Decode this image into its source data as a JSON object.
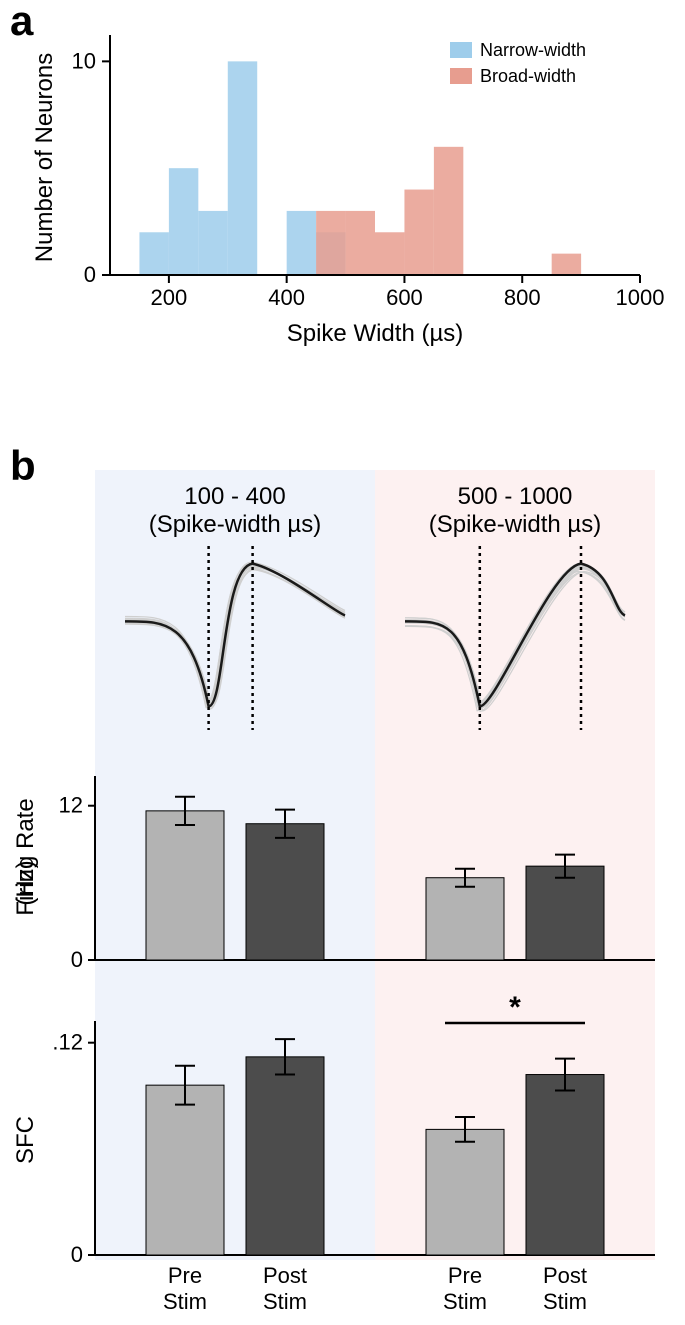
{
  "panelA": {
    "label": "a",
    "type": "histogram",
    "xlabel": "Spike Width (µs)",
    "ylabel": "Number of Neurons",
    "xlim": [
      100,
      1000
    ],
    "ylim": [
      0,
      11
    ],
    "xticks": [
      200,
      400,
      600,
      800,
      1000
    ],
    "yticks": [
      0,
      10
    ],
    "label_fontsize": 24,
    "tick_fontsize": 22,
    "bin_width": 50,
    "axis_color": "#000000",
    "legend": {
      "items": [
        {
          "label": "Narrow-width",
          "color": "#9ecdeb"
        },
        {
          "label": "Broad-width",
          "color": "#e79d8f"
        }
      ],
      "fontsize": 18
    },
    "series": [
      {
        "name": "narrow",
        "color": "#9ecdeb",
        "opacity": 0.85,
        "bins": [
          {
            "x": 175,
            "count": 2
          },
          {
            "x": 225,
            "count": 5
          },
          {
            "x": 275,
            "count": 3
          },
          {
            "x": 325,
            "count": 10
          },
          {
            "x": 375,
            "count": 0
          },
          {
            "x": 425,
            "count": 3
          },
          {
            "x": 475,
            "count": 2
          }
        ]
      },
      {
        "name": "broad",
        "color": "#e79d8f",
        "opacity": 0.85,
        "bins": [
          {
            "x": 475,
            "count": 3
          },
          {
            "x": 525,
            "count": 3
          },
          {
            "x": 575,
            "count": 2
          },
          {
            "x": 625,
            "count": 4
          },
          {
            "x": 675,
            "count": 6
          },
          {
            "x": 875,
            "count": 1
          }
        ]
      }
    ]
  },
  "panelB": {
    "label": "b",
    "bg_left": "#eff3fb",
    "bg_right": "#fdf1f1",
    "left_title_line1": "100 - 400",
    "left_title_line2": "(Spike-width µs)",
    "right_title_line1": "500 - 1000",
    "right_title_line2": "(Spike-width µs)",
    "title_fontsize": 24,
    "waveform_stroke": "#1a1a1a",
    "waveform_ghost_stroke": "#cfcfcf",
    "waveform_dash": "3,4",
    "firingRate": {
      "ylabel_line1": "Firing Rate",
      "ylabel_line2": "(Hz)",
      "ylim": [
        0,
        14
      ],
      "yticks": [
        0,
        12
      ],
      "bars": {
        "narrow_pre": {
          "value": 11.6,
          "err": 1.1
        },
        "narrow_post": {
          "value": 10.6,
          "err": 1.1
        },
        "broad_pre": {
          "value": 6.4,
          "err": 0.7
        },
        "broad_post": {
          "value": 7.3,
          "err": 0.9
        }
      }
    },
    "sfc": {
      "ylabel": "SFC",
      "ylim": [
        0,
        0.13
      ],
      "yticks": [
        0,
        0.12
      ],
      "ytick_labels": [
        "0",
        ".12"
      ],
      "bars": {
        "narrow_pre": {
          "value": 0.096,
          "err": 0.011
        },
        "narrow_post": {
          "value": 0.112,
          "err": 0.01
        },
        "broad_pre": {
          "value": 0.071,
          "err": 0.007
        },
        "broad_post": {
          "value": 0.102,
          "err": 0.009
        }
      },
      "sig_marker": "*"
    },
    "bar_colors": {
      "pre": "#b3b3b3",
      "post": "#4c4c4c"
    },
    "bar_stroke": "#000000",
    "err_stroke": "#000000",
    "xlabels": {
      "pre_line1": "Pre",
      "pre_line2": "Stim",
      "post_line1": "Post",
      "post_line2": "Stim"
    },
    "xlabel_fontsize": 22,
    "ylabel_fontsize": 24,
    "tick_fontsize": 22
  }
}
